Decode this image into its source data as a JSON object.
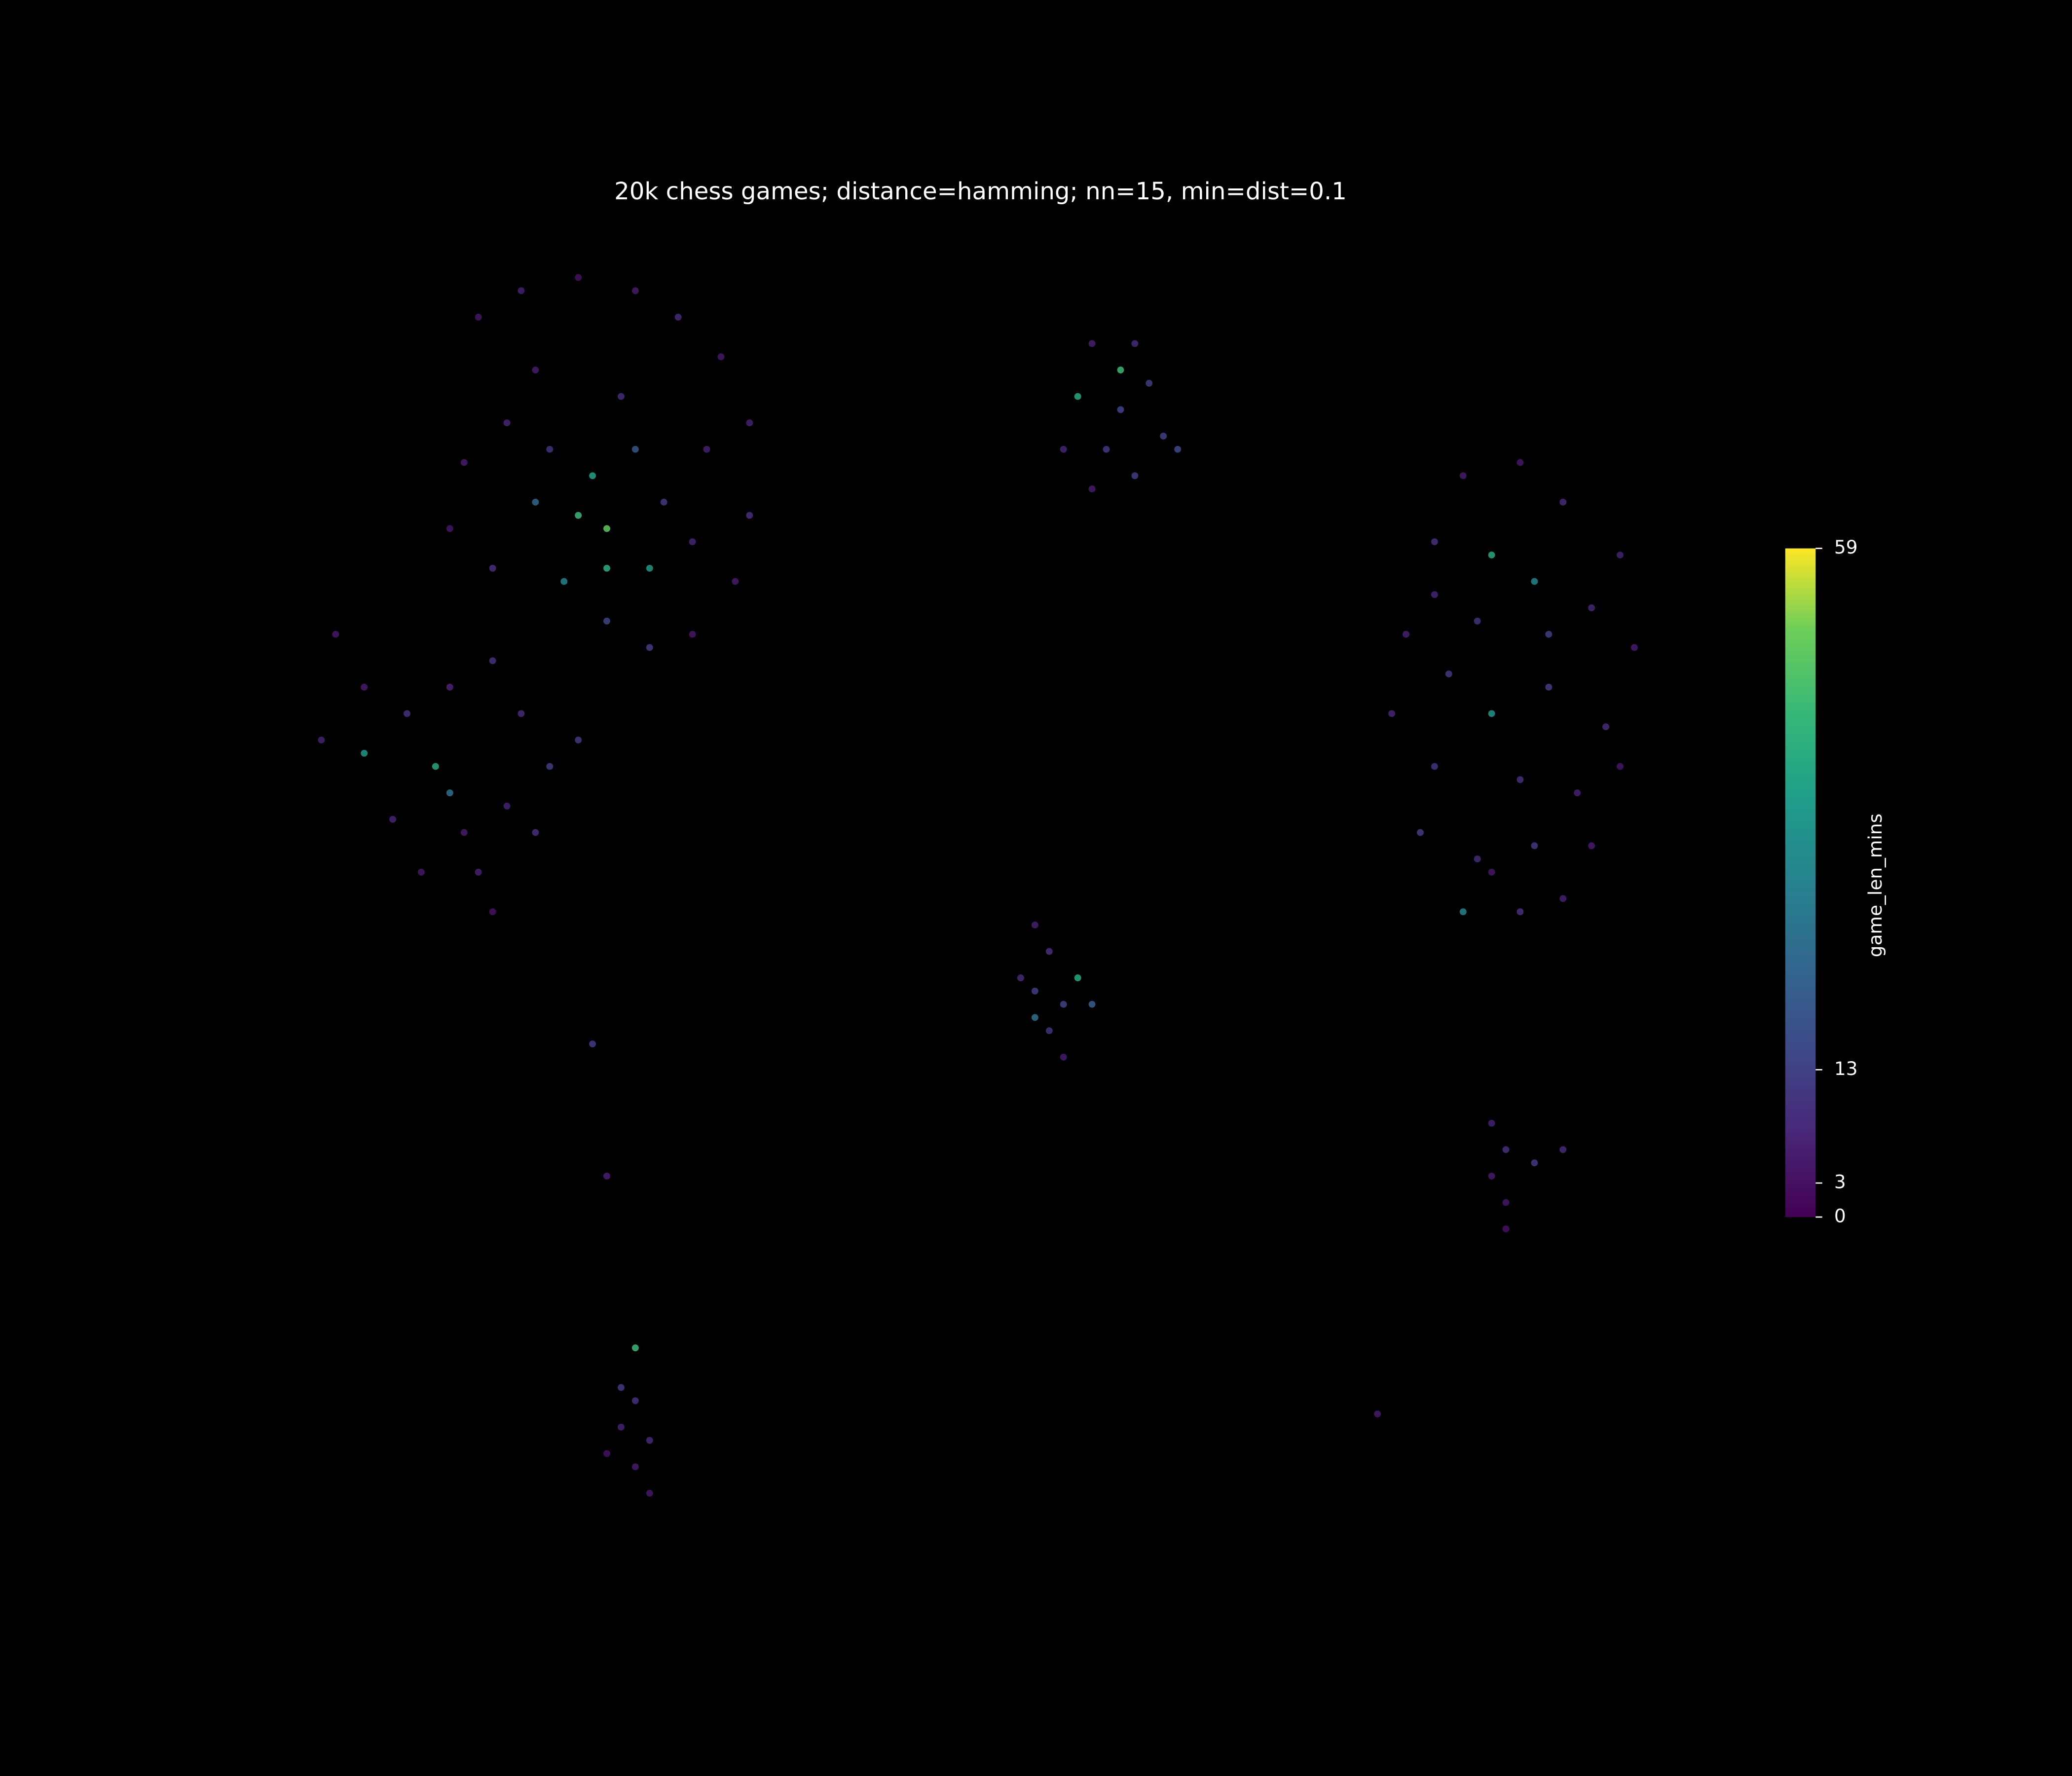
{
  "chart_data": {
    "type": "scatter",
    "title": "20k chess games; distance=hamming; nn=15, min=dist=0.1",
    "xlim": [
      0,
      100
    ],
    "ylim": [
      0,
      100
    ],
    "cmap": "viridis",
    "colorbar": {
      "label": "game_len_mins",
      "lim": [
        0,
        59
      ],
      "ticks": [
        0,
        3,
        13,
        59
      ]
    },
    "x": [
      15,
      18,
      22,
      26,
      29,
      32,
      34,
      34,
      33,
      30,
      27,
      24,
      21,
      22,
      24,
      23,
      20,
      17,
      14,
      13,
      16,
      19,
      26,
      28,
      30,
      25,
      19,
      31,
      24,
      27,
      5,
      7,
      4,
      10,
      13,
      16,
      18,
      20,
      17,
      14,
      11,
      9,
      12,
      7,
      15,
      19,
      22,
      16,
      13,
      58,
      61,
      62,
      57,
      60,
      63,
      59,
      58,
      61,
      64,
      60,
      56,
      84,
      88,
      91,
      95,
      82,
      86,
      89,
      93,
      96,
      80,
      83,
      86,
      90,
      94,
      79,
      82,
      88,
      92,
      95,
      81,
      85,
      89,
      93,
      84,
      88,
      91,
      86,
      90,
      85,
      82,
      54,
      55,
      57,
      54,
      56,
      58,
      53,
      55,
      56,
      54,
      86,
      87,
      89,
      91,
      86,
      87,
      87,
      26,
      25,
      26,
      25,
      27,
      26,
      27,
      24,
      23,
      24,
      78
    ],
    "y": [
      94,
      96,
      97,
      96,
      94,
      91,
      86,
      79,
      74,
      70,
      69,
      71,
      74,
      79,
      78,
      82,
      84,
      86,
      83,
      78,
      75,
      80,
      84,
      80,
      77,
      88,
      90,
      84,
      75,
      75,
      70,
      66,
      62,
      64,
      66,
      68,
      64,
      60,
      57,
      55,
      52,
      56,
      60,
      61,
      52,
      55,
      62,
      49,
      58,
      92,
      92,
      89,
      88,
      87,
      85,
      84,
      81,
      82,
      84,
      90,
      84,
      82,
      83,
      80,
      76,
      77,
      76,
      74,
      72,
      69,
      70,
      67,
      64,
      66,
      63,
      64,
      60,
      59,
      58,
      60,
      55,
      53,
      54,
      54,
      49,
      49,
      50,
      52,
      70,
      71,
      73,
      48,
      46,
      44,
      43,
      42,
      42,
      44,
      40,
      38,
      41,
      33,
      31,
      30,
      31,
      29,
      27,
      25,
      16,
      13,
      12,
      10,
      9,
      7,
      5,
      8,
      39,
      29,
      11
    ],
    "values": [
      4,
      6,
      3,
      5,
      8,
      4,
      6,
      9,
      5,
      4,
      12,
      14,
      30,
      45,
      50,
      38,
      10,
      7,
      5,
      4,
      9,
      22,
      18,
      11,
      7,
      8,
      5,
      6,
      42,
      35,
      4,
      5,
      6,
      9,
      7,
      10,
      8,
      12,
      6,
      5,
      4,
      7,
      40,
      35,
      6,
      9,
      11,
      3,
      25,
      6,
      8,
      12,
      40,
      14,
      13,
      11,
      5,
      12,
      15,
      45,
      7,
      5,
      4,
      8,
      6,
      9,
      40,
      30,
      7,
      5,
      6,
      11,
      35,
      12,
      8,
      7,
      10,
      9,
      6,
      4,
      12,
      8,
      11,
      5,
      30,
      9,
      6,
      4,
      13,
      10,
      7,
      6,
      9,
      40,
      12,
      14,
      20,
      8,
      10,
      5,
      25,
      6,
      9,
      11,
      8,
      5,
      4,
      3,
      45,
      11,
      9,
      6,
      8,
      5,
      4,
      3,
      12,
      6,
      5
    ]
  }
}
